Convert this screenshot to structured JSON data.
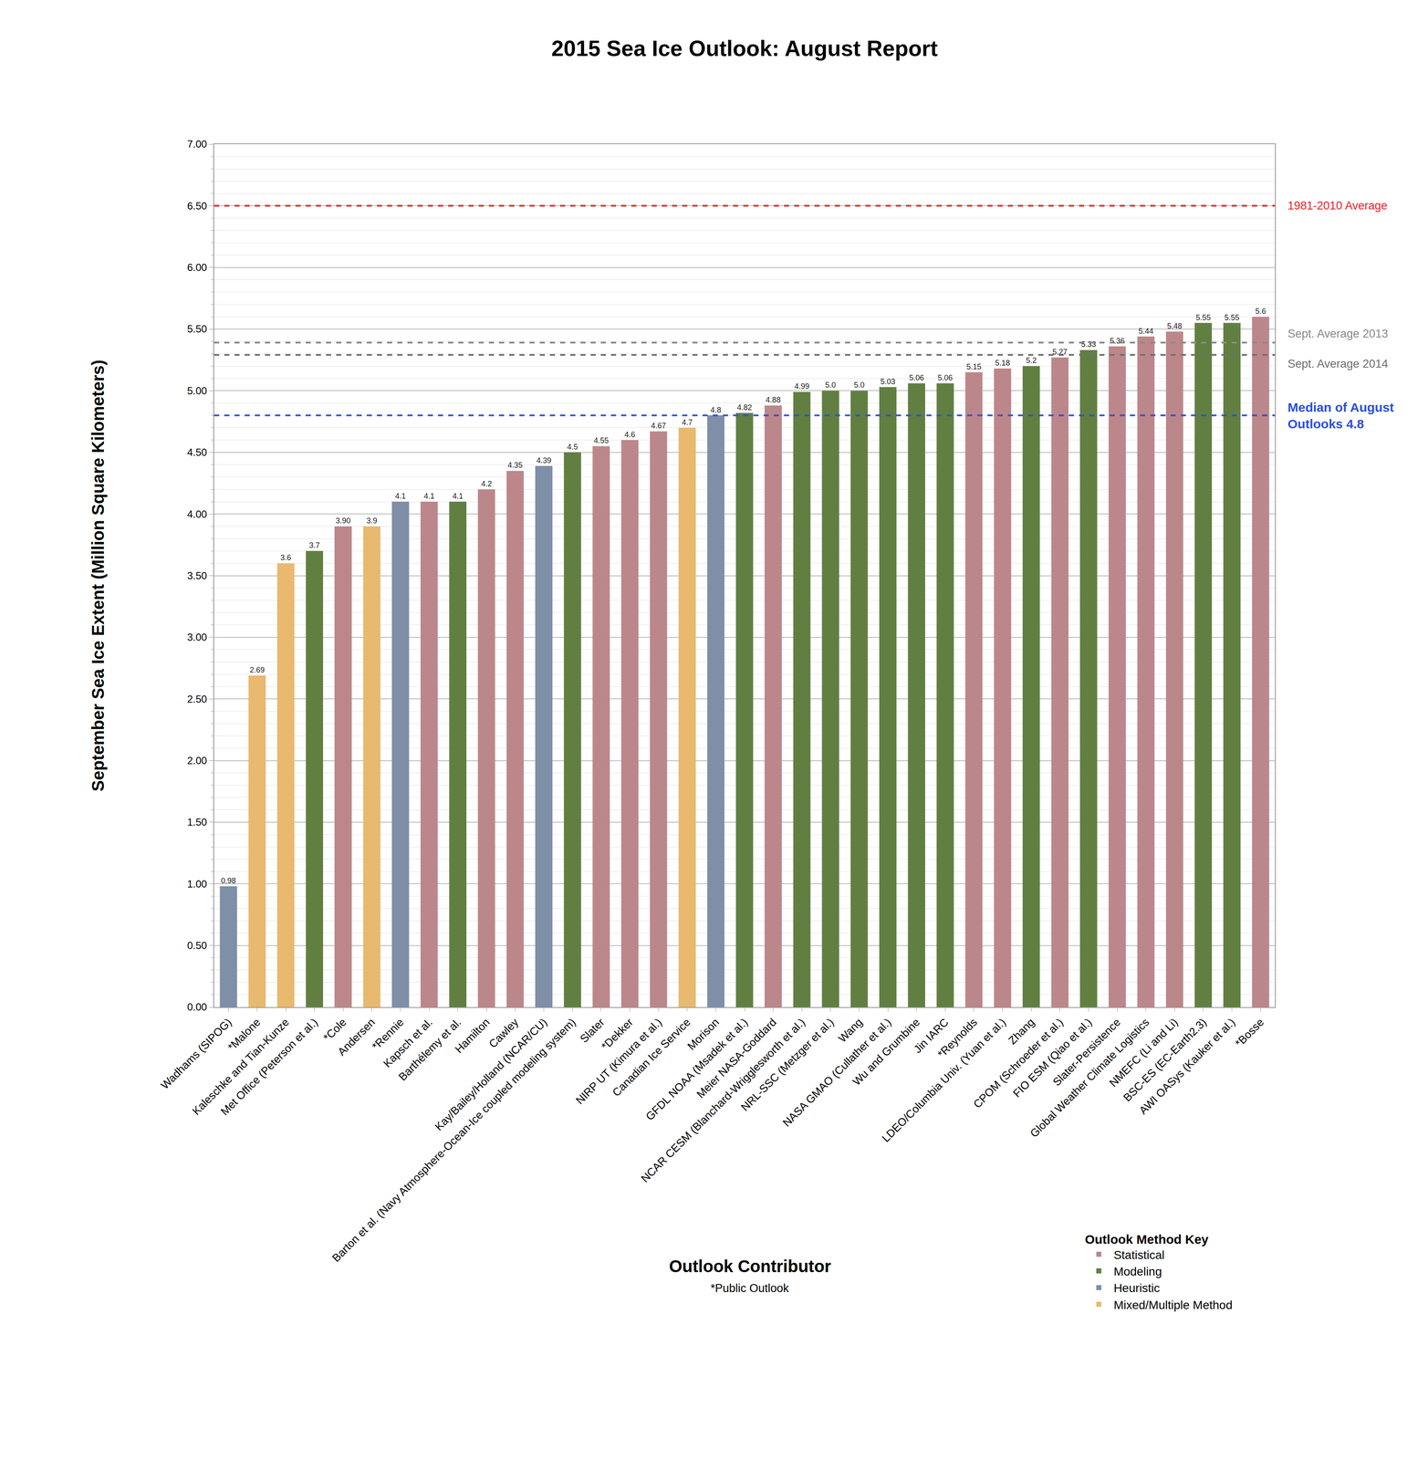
{
  "chart_data": {
    "type": "bar",
    "title": "2015 Sea Ice Outlook: August Report",
    "x_label": "Outlook Contributor",
    "y_label": "September Sea Ice Extent (Million Square Kilometers)",
    "note": "*Public Outlook",
    "legend_title": "Outlook Method Key",
    "legend": "lower right",
    "grid": true,
    "data_labels": true,
    "categories": [
      "Wadhams (SIPOG)",
      "*Malone",
      "Kaleschke and Tian-Kunze",
      "Met Office (Peterson et al.)",
      "*Cole",
      "Andersen",
      "*Rennie",
      "Kapsch et al.",
      "Barthélemy et al.",
      "Hamilton",
      "Cawley",
      "Kay/Bailey/Holland (NCAR/CU)",
      "Barton et al. (Navy Atmosphere-Ocean-Ice coupled modeling system)",
      "Slater",
      "*Dekker",
      "NIRP UT (Kimura et al.)",
      "Canadian Ice Service",
      "Morison",
      "GFDL NOAA (Msadek et al.)",
      "Meier NASA-Goddard",
      "NCAR CESM (Blanchard-Wrigglesworth et al.)",
      "NRL-SSC (Metzger et al.)",
      "Wang",
      "NASA GMAO (Cullather et al.)",
      "Wu and Grumbine",
      "Jin IARC",
      "*Reynolds",
      "LDEO/Columbia Univ. (Yuan et al.)",
      "Zhang",
      "CPOM (Schroeder et al.)",
      "FIO ESM (Qiao et al.)",
      "Slater-Persistence",
      "Global Weather Climate Logistics",
      "NMEFC (Li and Li)",
      "BSC-ES (EC-Earth2.3)",
      "AWI OASys (Kauker et al.)",
      "*Bosse"
    ],
    "series": [
      {
        "name": "Statistical",
        "color": "#bc878b",
        "values": [
          null,
          null,
          null,
          null,
          3.9,
          null,
          null,
          4.1,
          null,
          4.2,
          4.35,
          null,
          null,
          4.55,
          4.6,
          4.67,
          null,
          null,
          null,
          4.88,
          null,
          null,
          null,
          null,
          null,
          null,
          5.15,
          5.18,
          null,
          5.27,
          null,
          5.36,
          5.44,
          5.48,
          null,
          null,
          5.6
        ],
        "value_labels": [
          null,
          null,
          null,
          null,
          "3.90",
          null,
          null,
          "4.1",
          null,
          "4.2",
          "4.35",
          null,
          null,
          "4.55",
          "4.6",
          "4.67",
          null,
          null,
          null,
          "4.88",
          null,
          null,
          null,
          null,
          null,
          null,
          "5.15",
          "5.18",
          null,
          "5.27",
          null,
          "5.36",
          "5.44",
          "5.48",
          null,
          null,
          "5.6"
        ]
      },
      {
        "name": "Modeling",
        "color": "#627f42",
        "values": [
          null,
          null,
          null,
          3.7,
          null,
          null,
          null,
          null,
          4.1,
          null,
          null,
          null,
          4.5,
          null,
          null,
          null,
          null,
          null,
          4.82,
          null,
          4.99,
          5.0,
          5.0,
          5.03,
          5.06,
          5.06,
          null,
          null,
          5.2,
          null,
          5.33,
          null,
          null,
          null,
          5.55,
          5.55,
          null
        ],
        "value_labels": [
          null,
          null,
          null,
          "3.7",
          null,
          null,
          null,
          null,
          "4.1",
          null,
          null,
          null,
          "4.5",
          null,
          null,
          null,
          null,
          null,
          "4.82",
          null,
          "4.99",
          "5.0",
          "5.0",
          "5.03",
          "5.06",
          "5.06",
          null,
          null,
          "5.2",
          null,
          "5.33",
          null,
          null,
          null,
          "5.55",
          "5.55",
          null
        ]
      },
      {
        "name": "Heuristic",
        "color": "#7e8fa7",
        "values": [
          0.98,
          null,
          null,
          null,
          null,
          null,
          4.1,
          null,
          null,
          null,
          null,
          4.39,
          null,
          null,
          null,
          null,
          null,
          4.8,
          null,
          null,
          null,
          null,
          null,
          null,
          null,
          null,
          null,
          null,
          null,
          null,
          null,
          null,
          null,
          null,
          null,
          null,
          null
        ],
        "value_labels": [
          "0.98",
          null,
          null,
          null,
          null,
          null,
          "4.1",
          null,
          null,
          null,
          null,
          "4.39",
          null,
          null,
          null,
          null,
          null,
          "4.8",
          null,
          null,
          null,
          null,
          null,
          null,
          null,
          null,
          null,
          null,
          null,
          null,
          null,
          null,
          null,
          null,
          null,
          null,
          null
        ]
      },
      {
        "name": "Mixed/Multiple Method",
        "color": "#e8b96e",
        "values": [
          null,
          2.69,
          3.6,
          null,
          null,
          3.9,
          null,
          null,
          null,
          null,
          null,
          null,
          null,
          null,
          null,
          null,
          4.7,
          null,
          null,
          null,
          null,
          null,
          null,
          null,
          null,
          null,
          null,
          null,
          null,
          null,
          null,
          null,
          null,
          null,
          null,
          null,
          null
        ],
        "value_labels": [
          null,
          "2.69",
          "3.6",
          null,
          null,
          "3.9",
          null,
          null,
          null,
          null,
          null,
          null,
          null,
          null,
          null,
          null,
          "4.7",
          null,
          null,
          null,
          null,
          null,
          null,
          null,
          null,
          null,
          null,
          null,
          null,
          null,
          null,
          null,
          null,
          null,
          null,
          null,
          null
        ]
      }
    ],
    "reference_lines": [
      {
        "value": 6.5,
        "label": "1981-2010 Average",
        "color": "#e8262a",
        "line_style": "dashed"
      },
      {
        "value": 5.39,
        "label": "Sept. Average 2013",
        "color": "#8a8a8a",
        "line_style": "dashed"
      },
      {
        "value": 5.29,
        "label": "Sept. Average 2014",
        "color": "#707070",
        "line_style": "dashed"
      },
      {
        "value": 4.8,
        "label": "Median of August\nOutlooks 4.8",
        "color": "#2a4fe0",
        "line_style": "dashed"
      }
    ],
    "ylim": [
      0,
      7
    ],
    "yticks": [
      {
        "value": 0,
        "label": "0.00"
      },
      {
        "value": 0.5,
        "label": "0.50"
      },
      {
        "value": 1,
        "label": "1.00"
      },
      {
        "value": 1.5,
        "label": "1.50"
      },
      {
        "value": 2,
        "label": "2.00"
      },
      {
        "value": 2.5,
        "label": "2.50"
      },
      {
        "value": 3,
        "label": "3.00"
      },
      {
        "value": 3.5,
        "label": "3.50"
      },
      {
        "value": 4,
        "label": "4.00"
      },
      {
        "value": 4.5,
        "label": "4.50"
      },
      {
        "value": 5,
        "label": "5.00"
      },
      {
        "value": 5.5,
        "label": "5.50"
      },
      {
        "value": 6,
        "label": "6.00"
      },
      {
        "value": 6.5,
        "label": "6.50"
      },
      {
        "value": 7,
        "label": "7.00"
      }
    ]
  }
}
